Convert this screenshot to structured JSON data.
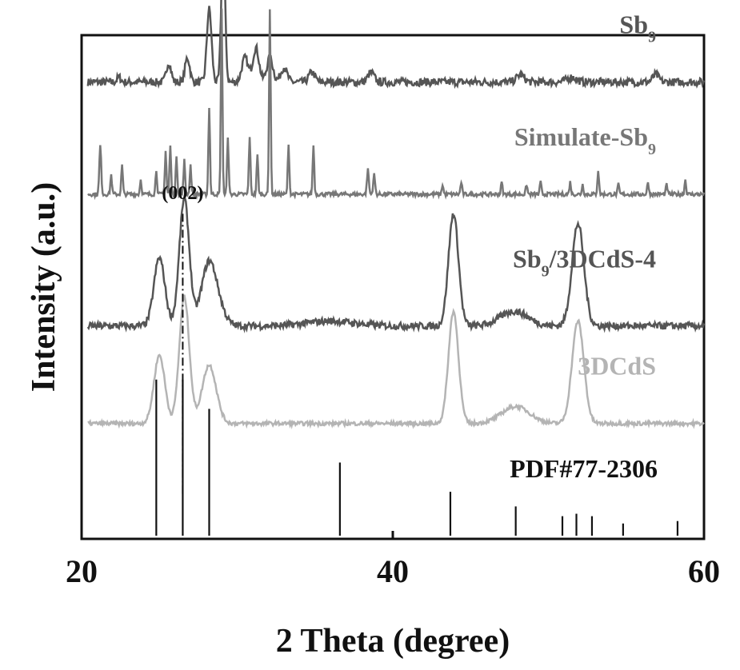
{
  "chart_data": {
    "type": "line",
    "xlabel": "2 Theta (degree)",
    "ylabel": "Intensity (a.u.)",
    "xlim": [
      20,
      60
    ],
    "xticks": [
      20,
      40,
      60
    ],
    "grid": false,
    "legend": "inline labels at right of each trace",
    "series": [
      {
        "name": "Sb",
        "sub": "9",
        "label_suffix": "",
        "color": "#555555",
        "baseline": 0.93,
        "noise": 0.008,
        "peaks": [
          [
            22.4,
            0.01,
            0.12
          ],
          [
            25.6,
            0.04,
            0.15
          ],
          [
            26.8,
            0.05,
            0.15
          ],
          [
            28.2,
            0.15,
            0.15
          ],
          [
            29.1,
            0.3,
            0.12
          ],
          [
            30.5,
            0.05,
            0.2
          ],
          [
            31.2,
            0.07,
            0.2
          ],
          [
            32.1,
            0.05,
            0.2
          ],
          [
            33.0,
            0.03,
            0.2
          ],
          [
            34.8,
            0.02,
            0.2
          ],
          [
            38.6,
            0.02,
            0.2
          ],
          [
            48.2,
            0.015,
            0.25
          ],
          [
            51.5,
            0.01,
            0.3
          ],
          [
            56.9,
            0.015,
            0.2
          ]
        ]
      },
      {
        "name": "Simulate-Sb",
        "sub": "9",
        "label_suffix": "",
        "color": "#777777",
        "baseline": 0.7,
        "noise": 0.004,
        "peaks": [
          [
            21.2,
            0.1,
            0.06
          ],
          [
            21.9,
            0.04,
            0.05
          ],
          [
            22.6,
            0.06,
            0.05
          ],
          [
            23.8,
            0.03,
            0.05
          ],
          [
            24.8,
            0.05,
            0.05
          ],
          [
            25.4,
            0.09,
            0.05
          ],
          [
            25.7,
            0.1,
            0.05
          ],
          [
            26.1,
            0.08,
            0.05
          ],
          [
            26.6,
            0.07,
            0.05
          ],
          [
            27.0,
            0.06,
            0.05
          ],
          [
            28.2,
            0.18,
            0.05
          ],
          [
            29.0,
            0.38,
            0.05
          ],
          [
            29.4,
            0.12,
            0.05
          ],
          [
            30.8,
            0.12,
            0.05
          ],
          [
            31.3,
            0.08,
            0.05
          ],
          [
            32.1,
            0.38,
            0.05
          ],
          [
            33.3,
            0.1,
            0.05
          ],
          [
            34.9,
            0.1,
            0.05
          ],
          [
            38.4,
            0.05,
            0.06
          ],
          [
            38.8,
            0.04,
            0.06
          ],
          [
            43.2,
            0.02,
            0.05
          ],
          [
            44.4,
            0.025,
            0.05
          ],
          [
            47.0,
            0.025,
            0.05
          ],
          [
            48.6,
            0.02,
            0.05
          ],
          [
            49.5,
            0.025,
            0.05
          ],
          [
            51.4,
            0.025,
            0.05
          ],
          [
            52.2,
            0.02,
            0.05
          ],
          [
            53.2,
            0.05,
            0.05
          ],
          [
            54.5,
            0.02,
            0.05
          ],
          [
            56.4,
            0.025,
            0.05
          ],
          [
            57.6,
            0.02,
            0.05
          ],
          [
            58.8,
            0.03,
            0.05
          ]
        ]
      },
      {
        "name": "Sb",
        "sub": "9",
        "label_suffix": "/3DCdS-4",
        "color": "#555555",
        "baseline": 0.43,
        "noise": 0.007,
        "peaks": [
          [
            25.0,
            0.14,
            0.35
          ],
          [
            26.6,
            0.26,
            0.32
          ],
          [
            28.1,
            0.1,
            0.45
          ],
          [
            28.6,
            0.05,
            0.5
          ],
          [
            36.0,
            0.01,
            1.5
          ],
          [
            43.9,
            0.23,
            0.32
          ],
          [
            47.8,
            0.03,
            0.9
          ],
          [
            51.9,
            0.21,
            0.38
          ]
        ]
      },
      {
        "name": "3DCdS",
        "sub": "",
        "label_suffix": "",
        "color": "#b4b4b4",
        "baseline": 0.23,
        "noise": 0.004,
        "peaks": [
          [
            25.0,
            0.14,
            0.35
          ],
          [
            26.6,
            0.26,
            0.32
          ],
          [
            28.2,
            0.12,
            0.45
          ],
          [
            43.9,
            0.23,
            0.32
          ],
          [
            47.9,
            0.035,
            0.9
          ],
          [
            51.9,
            0.21,
            0.38
          ]
        ]
      }
    ],
    "reference": {
      "name": "PDF#77-2306",
      "color": "#111111",
      "baseline": 0.0,
      "lines": [
        [
          24.8,
          0.32
        ],
        [
          26.5,
          0.32
        ],
        [
          28.2,
          0.26
        ],
        [
          36.6,
          0.15
        ],
        [
          43.7,
          0.09
        ],
        [
          47.9,
          0.06
        ],
        [
          50.9,
          0.04
        ],
        [
          51.8,
          0.045
        ],
        [
          52.8,
          0.04
        ],
        [
          54.8,
          0.025
        ],
        [
          58.3,
          0.03
        ]
      ]
    },
    "annotation": {
      "text": "(002)",
      "x": 26.5,
      "style": "dash-dot vertical guide"
    }
  }
}
